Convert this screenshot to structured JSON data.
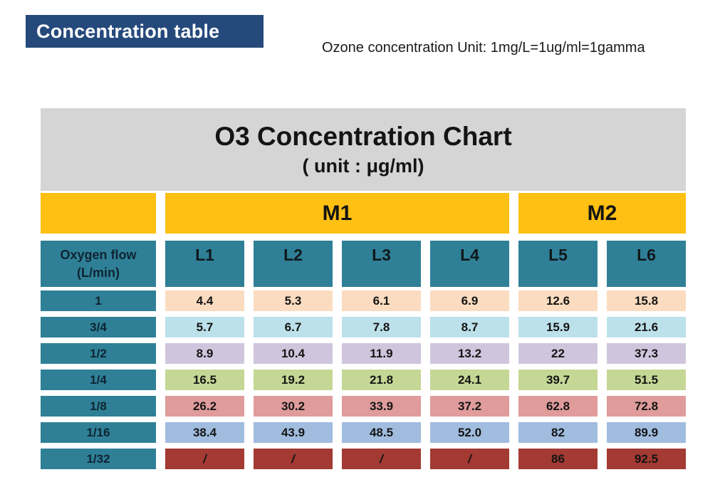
{
  "header": {
    "banner": "Concentration table",
    "unit_note": "Ozone concentration Unit: 1mg/L=1ug/ml=1gamma"
  },
  "colors": {
    "banner_blue": "#25497B",
    "band_yellow": "#FDC013",
    "teal": "#2F8096",
    "header_gray": "#D5D5D5",
    "dark_red": "#A33A33"
  },
  "chart_data": {
    "type": "table",
    "title": "O3 Concentration Chart",
    "subtitle": "( unit : μg/ml)",
    "column_groups": [
      {
        "label": "M1",
        "span": 4
      },
      {
        "label": "M2",
        "span": 2
      }
    ],
    "row_header": {
      "line1": "Oxygen flow",
      "line2": "(L/min)"
    },
    "columns": [
      "L1",
      "L2",
      "L3",
      "L4",
      "L5",
      "L6"
    ],
    "rows": [
      {
        "flow": "1",
        "color": "#FBDCC0",
        "values": [
          "4.4",
          "5.3",
          "6.1",
          "6.9",
          "12.6",
          "15.8"
        ]
      },
      {
        "flow": "3/4",
        "color": "#BCE1EA",
        "values": [
          "5.7",
          "6.7",
          "7.8",
          "8.7",
          "15.9",
          "21.6"
        ]
      },
      {
        "flow": "1/2",
        "color": "#CFC6DD",
        "values": [
          "8.9",
          "10.4",
          "11.9",
          "13.2",
          "22",
          "37.3"
        ]
      },
      {
        "flow": "1/4",
        "color": "#C5D795",
        "values": [
          "16.5",
          "19.2",
          "21.8",
          "24.1",
          "39.7",
          "51.5"
        ]
      },
      {
        "flow": "1/8",
        "color": "#E09B9B",
        "values": [
          "26.2",
          "30.2",
          "33.9",
          "37.2",
          "62.8",
          "72.8"
        ]
      },
      {
        "flow": "1/16",
        "color": "#A0BCDF",
        "values": [
          "38.4",
          "43.9",
          "48.5",
          "52.0",
          "82",
          "89.9"
        ]
      },
      {
        "flow": "1/32",
        "color": "#A33A33",
        "values": [
          "/",
          "/",
          "/",
          "/",
          "86",
          "92.5"
        ]
      }
    ]
  }
}
